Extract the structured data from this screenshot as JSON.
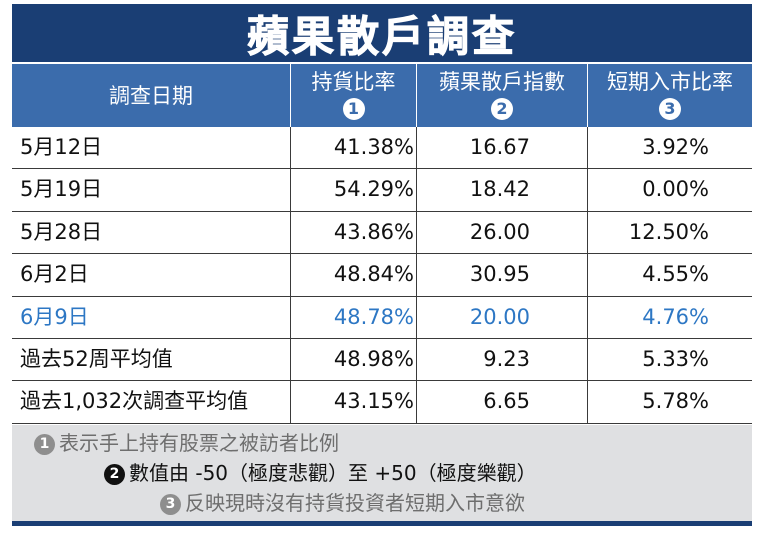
{
  "title": "蘋果散戶調查",
  "headers": [
    {
      "label": "調查日期",
      "badge": ""
    },
    {
      "label": "持貨比率",
      "badge": "1"
    },
    {
      "label": "蘋果散戶指數",
      "badge": "2"
    },
    {
      "label": "短期入市比率",
      "badge": "3"
    }
  ],
  "rows": [
    {
      "date": "5月12日",
      "holding": "41.38%",
      "index": "16.67",
      "entry": "3.92%"
    },
    {
      "date": "5月19日",
      "holding": "54.29%",
      "index": "18.42",
      "entry": "0.00%"
    },
    {
      "date": "5月28日",
      "holding": "43.86%",
      "index": "26.00",
      "entry": "12.50%"
    },
    {
      "date": "6月2日",
      "holding": "48.84%",
      "index": "30.95",
      "entry": "4.55%"
    },
    {
      "date": "6月9日",
      "holding": "48.78%",
      "index": "20.00",
      "entry": "4.76%"
    },
    {
      "date": "過去52周平均值",
      "holding": "48.98%",
      "index": "9.23",
      "entry": "5.33%"
    },
    {
      "date": "過去1,032次調查平均值",
      "holding": "43.15%",
      "index": "6.65",
      "entry": "5.78%"
    }
  ],
  "highlight_row_color": "#2d77c4",
  "notes": [
    {
      "badge": "1",
      "text": "表示手上持有股票之被訪者比例",
      "badge_color": "#8e8e8e",
      "text_color": "#6e6e6e"
    },
    {
      "badge": "2",
      "text": "數值由 -50（極度悲觀）至 +50（極度樂觀）",
      "badge_color": "#111111",
      "text_color": "#111111"
    },
    {
      "badge": "3",
      "text": "反映現時沒有持貨投資者短期入市意欲",
      "badge_color": "#8e8e8e",
      "text_color": "#6e6e6e"
    }
  ],
  "colors": {
    "title_bg": "#1a3e74",
    "header_bg": "#3b6cac",
    "notes_bg": "#dfe0e2"
  }
}
